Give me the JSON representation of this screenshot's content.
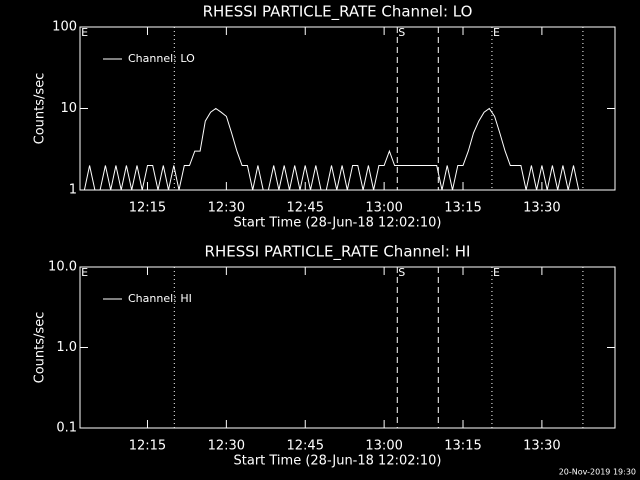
{
  "chart_data": [
    {
      "type": "line",
      "title": "RHESSI PARTICLE_RATE Channel: LO",
      "xlabel": "Start Time (28-Jun-18 12:02:10)",
      "ylabel": "Counts/sec",
      "log_y": true,
      "xlim": [
        2.17,
        103.9
      ],
      "ylim": [
        1,
        100
      ],
      "xticks": [
        {
          "value": 15,
          "label": "12:15"
        },
        {
          "value": 30,
          "label": "12:30"
        },
        {
          "value": 45,
          "label": "12:45"
        },
        {
          "value": 60,
          "label": "13:00"
        },
        {
          "value": 75,
          "label": "13:15"
        },
        {
          "value": 90,
          "label": "13:30"
        }
      ],
      "yticks": [
        1,
        10,
        100
      ],
      "markers": [
        {
          "x": 20.1,
          "style": "dotted"
        },
        {
          "x": 62.5,
          "style": "dashed"
        },
        {
          "x": 70.3,
          "style": "dashed"
        },
        {
          "x": 80.5,
          "style": "dotted"
        },
        {
          "x": 97.8,
          "style": "dotted"
        }
      ],
      "marker_labels": [
        {
          "x": 2.2,
          "label": "E"
        },
        {
          "x": 62.5,
          "label": "S"
        },
        {
          "x": 80.5,
          "label": "E"
        }
      ],
      "legend": "upper left",
      "series": [
        {
          "name": "Channel: LO",
          "color": "#ffffff",
          "x": [
            3,
            4,
            5,
            6,
            7,
            8,
            9,
            10,
            11,
            12,
            13,
            14,
            15,
            16,
            17,
            18,
            19,
            20,
            21,
            22,
            23,
            24,
            25,
            26,
            27,
            28,
            29,
            30,
            31,
            32,
            33,
            34,
            35,
            36,
            37,
            38,
            39,
            40,
            41,
            42,
            43,
            44,
            45,
            46,
            47,
            48,
            49,
            50,
            51,
            52,
            53,
            54,
            55,
            56,
            57,
            58,
            59,
            60,
            61,
            62,
            63,
            64,
            65,
            66,
            67,
            68,
            69,
            70,
            71,
            72,
            73,
            74,
            75,
            76,
            77,
            78,
            79,
            80,
            81,
            82,
            83,
            84,
            85,
            86,
            87,
            88,
            89,
            90,
            91,
            92,
            93,
            94,
            95,
            96,
            97
          ],
          "values": [
            1,
            2,
            1,
            1,
            2,
            1,
            2,
            1,
            2,
            1,
            2,
            1,
            2,
            2,
            1,
            2,
            1,
            2,
            1,
            2,
            2,
            3,
            3,
            7,
            9,
            10,
            9,
            8,
            5,
            3,
            2,
            2,
            1,
            2,
            1,
            1,
            2,
            1,
            2,
            1,
            2,
            1,
            2,
            1,
            2,
            1,
            1,
            2,
            1,
            2,
            1,
            2,
            2,
            1,
            2,
            1,
            2,
            2,
            3,
            2,
            2,
            2,
            2,
            2,
            2,
            2,
            2,
            2,
            1,
            2,
            1,
            2,
            2,
            3,
            5,
            7,
            9,
            10,
            8,
            5,
            3,
            2,
            2,
            2,
            1,
            2,
            1,
            2,
            1,
            2,
            1,
            2,
            1,
            2,
            1
          ]
        }
      ]
    },
    {
      "type": "line",
      "title": "RHESSI PARTICLE_RATE Channel: HI",
      "xlabel": "Start Time (28-Jun-18 12:02:10)",
      "ylabel": "Counts/sec",
      "log_y": true,
      "xlim": [
        2.17,
        103.9
      ],
      "ylim": [
        0.1,
        10
      ],
      "xticks": [
        {
          "value": 15,
          "label": "12:15"
        },
        {
          "value": 30,
          "label": "12:30"
        },
        {
          "value": 45,
          "label": "12:45"
        },
        {
          "value": 60,
          "label": "13:00"
        },
        {
          "value": 75,
          "label": "13:15"
        },
        {
          "value": 90,
          "label": "13:30"
        }
      ],
      "yticks": [
        0.1,
        {
          "value": 1,
          "label": "1.0"
        },
        {
          "value": 10,
          "label": "10.0"
        }
      ],
      "markers": [
        {
          "x": 20.1,
          "style": "dotted"
        },
        {
          "x": 62.5,
          "style": "dashed"
        },
        {
          "x": 70.3,
          "style": "dashed"
        },
        {
          "x": 80.5,
          "style": "dotted"
        },
        {
          "x": 97.8,
          "style": "dotted"
        }
      ],
      "marker_labels": [
        {
          "x": 2.2,
          "label": "E"
        },
        {
          "x": 62.5,
          "label": "S"
        },
        {
          "x": 80.5,
          "label": "E"
        }
      ],
      "legend": "upper left",
      "series": [
        {
          "name": "Channel: HI",
          "color": "#ffffff",
          "x": [],
          "values": []
        }
      ]
    }
  ],
  "footer": "20-Nov-2019 19:30"
}
